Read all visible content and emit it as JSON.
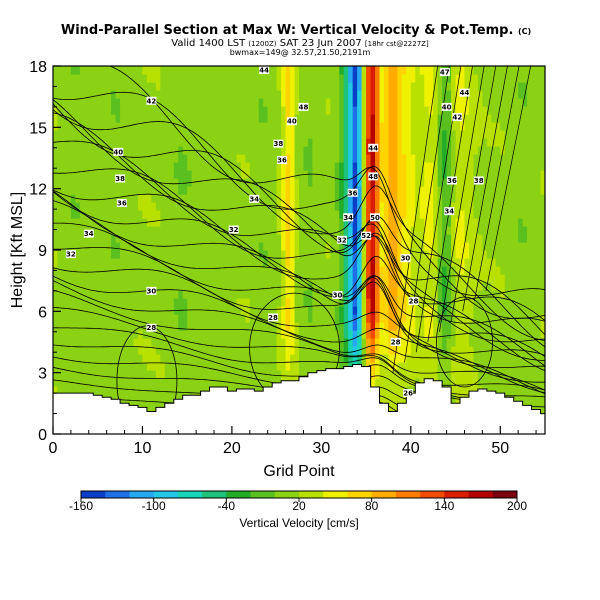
{
  "chart_data": {
    "type": "heatmap",
    "title": "Wind-Parallel Section at Max W: Vertical Velocity & Pot.Temp.",
    "title_unit": "(C)",
    "subtitle_prefix": "Valid 1400 LST",
    "subtitle_small1": "(1200Z)",
    "subtitle_date": "SAT 23 Jun 2007",
    "subtitle_small2": "[18hr cst@2227Z]",
    "subtitle_line2": "bwmax=149@ 32.57,21.50,2191m",
    "xlabel": "Grid Point",
    "ylabel": "Height [Kft MSL]",
    "xlim": [
      0,
      55
    ],
    "ylim": [
      0,
      18
    ],
    "x_ticks": [
      0,
      10,
      20,
      30,
      40,
      50
    ],
    "y_ticks": [
      0,
      3,
      6,
      9,
      12,
      15,
      18
    ],
    "colorbar": {
      "label": "Vertical Velocity [cm/s]",
      "tick_labels": [
        "-160",
        "-100",
        "-40",
        "20",
        "80",
        "140",
        "200"
      ],
      "levels": [
        -160,
        -140,
        -120,
        -100,
        -80,
        -60,
        -40,
        -20,
        0,
        20,
        40,
        60,
        80,
        100,
        120,
        140,
        160,
        180,
        200
      ],
      "colors": [
        "#0a3fc8",
        "#1f6fe6",
        "#27a8f2",
        "#22c8e6",
        "#1ad6b8",
        "#1ec27a",
        "#22ac28",
        "#5ac020",
        "#8cd214",
        "#b8e000",
        "#eef200",
        "#ffd400",
        "#ffac00",
        "#ff7c00",
        "#f24c00",
        "#d81c00",
        "#b40000",
        "#7a0010"
      ]
    },
    "wmax": 149,
    "terrain_kft": [
      2.0,
      2.0,
      2.0,
      2.0,
      2.0,
      1.9,
      1.8,
      1.7,
      1.5,
      1.4,
      1.3,
      1.1,
      1.3,
      1.5,
      1.7,
      1.9,
      1.9,
      2.1,
      2.3,
      2.3,
      2.1,
      2.2,
      2.2,
      2.1,
      2.3,
      2.5,
      2.6,
      2.6,
      2.8,
      3.0,
      3.1,
      3.2,
      3.2,
      3.3,
      3.4,
      3.3,
      2.3,
      1.5,
      1.1,
      1.5,
      2.0,
      2.5,
      2.7,
      2.6,
      2.3,
      1.5,
      1.8,
      2.1,
      2.2,
      2.1,
      2.0,
      1.8,
      1.6,
      1.4,
      1.2,
      1.0
    ],
    "w_field": {
      "background_cm_s": 15,
      "plumes": [
        {
          "x": 35.6,
          "w_cm_s": 149,
          "width": 0.9
        },
        {
          "x": 37.8,
          "w_cm_s": 60,
          "width": 0.9
        },
        {
          "x": 39.2,
          "w_cm_s": 40,
          "width": 1.4
        },
        {
          "x": 33.9,
          "w_cm_s": -150,
          "width": 0.8
        },
        {
          "x": 32.8,
          "w_cm_s": -45,
          "width": 0.9
        },
        {
          "x": 43.8,
          "w_cm_s": -45,
          "width": 0.9
        },
        {
          "x": 42.2,
          "w_cm_s": 30,
          "width": 1.2
        },
        {
          "x": 45.5,
          "w_cm_s": 25,
          "width": 1.5
        },
        {
          "x": 26.3,
          "w_cm_s": 50,
          "width": 0.7
        },
        {
          "x": 2.5,
          "w_cm_s": -10,
          "width": 1.2
        },
        {
          "x": 7.0,
          "w_cm_s": -10,
          "width": 1.5
        },
        {
          "x": 14.5,
          "w_cm_s": -12,
          "width": 1.5
        },
        {
          "x": 19.0,
          "w_cm_s": -8,
          "width": 1.2
        },
        {
          "x": 23.5,
          "w_cm_s": -10,
          "width": 1.0
        },
        {
          "x": 28.7,
          "w_cm_s": -12,
          "width": 1.0
        },
        {
          "x": 52.5,
          "w_cm_s": -10,
          "width": 1.2
        }
      ]
    },
    "theta_contour_interval_c": 1,
    "theta_labels": [
      {
        "x": 2,
        "y": 8.8,
        "text": "32"
      },
      {
        "x": 4,
        "y": 9.8,
        "text": "34"
      },
      {
        "x": 11,
        "y": 7.0,
        "text": "30"
      },
      {
        "x": 11,
        "y": 5.2,
        "text": "28"
      },
      {
        "x": 7.7,
        "y": 11.3,
        "text": "36"
      },
      {
        "x": 7.5,
        "y": 12.5,
        "text": "38"
      },
      {
        "x": 7.3,
        "y": 13.8,
        "text": "40"
      },
      {
        "x": 11,
        "y": 16.3,
        "text": "42"
      },
      {
        "x": 20.2,
        "y": 10.0,
        "text": "32"
      },
      {
        "x": 22.5,
        "y": 11.5,
        "text": "34"
      },
      {
        "x": 25.6,
        "y": 13.4,
        "text": "36"
      },
      {
        "x": 25.2,
        "y": 14.2,
        "text": "38"
      },
      {
        "x": 26.7,
        "y": 15.3,
        "text": "40"
      },
      {
        "x": 23.6,
        "y": 17.8,
        "text": "44"
      },
      {
        "x": 28,
        "y": 16.0,
        "text": "48"
      },
      {
        "x": 24.6,
        "y": 5.7,
        "text": "28"
      },
      {
        "x": 31.8,
        "y": 6.8,
        "text": "30"
      },
      {
        "x": 32.3,
        "y": 9.5,
        "text": "32"
      },
      {
        "x": 33.0,
        "y": 10.6,
        "text": "34"
      },
      {
        "x": 33.5,
        "y": 11.8,
        "text": "36"
      },
      {
        "x": 35.0,
        "y": 9.7,
        "text": "52"
      },
      {
        "x": 36.0,
        "y": 10.6,
        "text": "50"
      },
      {
        "x": 35.8,
        "y": 12.6,
        "text": "48"
      },
      {
        "x": 35.8,
        "y": 14.0,
        "text": "44"
      },
      {
        "x": 38.3,
        "y": 4.5,
        "text": "28"
      },
      {
        "x": 39.4,
        "y": 8.6,
        "text": "30"
      },
      {
        "x": 40.3,
        "y": 6.5,
        "text": "28"
      },
      {
        "x": 39.7,
        "y": 2.0,
        "text": "26"
      },
      {
        "x": 44.3,
        "y": 10.9,
        "text": "34"
      },
      {
        "x": 44.6,
        "y": 12.4,
        "text": "36"
      },
      {
        "x": 44.0,
        "y": 16.0,
        "text": "40"
      },
      {
        "x": 45.2,
        "y": 15.5,
        "text": "42"
      },
      {
        "x": 46.0,
        "y": 16.7,
        "text": "44"
      },
      {
        "x": 47.6,
        "y": 12.4,
        "text": "38"
      },
      {
        "x": 43.8,
        "y": 17.7,
        "text": "47"
      }
    ]
  }
}
